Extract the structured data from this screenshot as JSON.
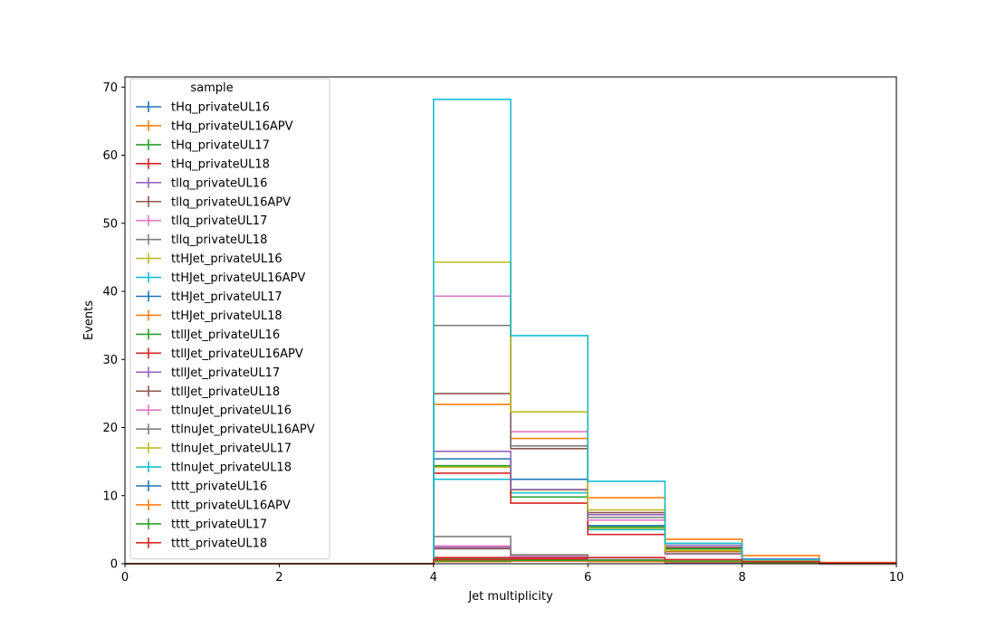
{
  "chart_data": {
    "type": "histogram-step",
    "title": "",
    "xlabel": "Jet multiplicity",
    "ylabel": "Events",
    "xlim": [
      0,
      10
    ],
    "ylim": [
      0,
      71.5
    ],
    "xticks": [
      "0",
      "2",
      "4",
      "6",
      "8",
      "10"
    ],
    "yticks": [
      "0",
      "10",
      "20",
      "30",
      "40",
      "50",
      "60",
      "70"
    ],
    "grid": false,
    "legend": {
      "title": "sample",
      "placement": "upper-left"
    },
    "bin_edges": [
      0,
      1,
      2,
      3,
      4,
      5,
      6,
      7,
      8,
      9,
      10
    ],
    "series": [
      {
        "name": "tHq_privateUL16",
        "color": "#1f77b4",
        "values": [
          0,
          0,
          0,
          0,
          0.6,
          0.4,
          0.3,
          0.1,
          0.05,
          0
        ]
      },
      {
        "name": "tHq_privateUL16APV",
        "color": "#ff7f0e",
        "values": [
          0,
          0,
          0,
          0,
          0.5,
          0.4,
          0.3,
          0.1,
          0.05,
          0
        ]
      },
      {
        "name": "tHq_privateUL17",
        "color": "#2ca02c",
        "values": [
          0,
          0,
          0,
          0,
          0.8,
          0.6,
          0.4,
          0.15,
          0.05,
          0
        ]
      },
      {
        "name": "tHq_privateUL18",
        "color": "#d62728",
        "values": [
          0,
          0,
          0,
          0,
          0.9,
          0.7,
          0.5,
          0.2,
          0.05,
          0
        ]
      },
      {
        "name": "tllq_privateUL16",
        "color": "#9467bd",
        "values": [
          0,
          0,
          0,
          0,
          2.4,
          1.0,
          0.5,
          0.15,
          0.05,
          0
        ]
      },
      {
        "name": "tllq_privateUL16APV",
        "color": "#8c564b",
        "values": [
          0,
          0,
          0,
          0,
          2.2,
          0.9,
          0.4,
          0.15,
          0.05,
          0
        ]
      },
      {
        "name": "tllq_privateUL17",
        "color": "#e377c2",
        "values": [
          0,
          0,
          0,
          0,
          2.6,
          1.1,
          0.5,
          0.2,
          0.05,
          0
        ]
      },
      {
        "name": "tllq_privateUL18",
        "color": "#7f7f7f",
        "values": [
          0,
          0,
          0,
          0,
          4.0,
          1.3,
          0.6,
          0.2,
          0.05,
          0
        ]
      },
      {
        "name": "ttHJet_privateUL16",
        "color": "#bcbd22",
        "values": [
          0,
          0,
          0,
          0,
          14.2,
          10.8,
          5.2,
          2.0,
          0.5,
          0.1
        ]
      },
      {
        "name": "ttHJet_privateUL16APV",
        "color": "#17becf",
        "values": [
          0,
          0,
          0,
          0,
          12.4,
          10.4,
          5.0,
          1.9,
          0.5,
          0.1
        ]
      },
      {
        "name": "ttHJet_privateUL17",
        "color": "#1f77b4",
        "values": [
          0,
          0,
          0,
          0,
          15.4,
          12.4,
          5.6,
          2.3,
          0.6,
          0.1
        ]
      },
      {
        "name": "ttHJet_privateUL18",
        "color": "#ff7f0e",
        "values": [
          0,
          0,
          0,
          0,
          23.4,
          18.4,
          9.7,
          3.6,
          1.2,
          0.2
        ]
      },
      {
        "name": "ttllJet_privateUL16",
        "color": "#2ca02c",
        "values": [
          0,
          0,
          0,
          0,
          14.4,
          9.8,
          5.4,
          2.2,
          0.6,
          0.1
        ]
      },
      {
        "name": "ttllJet_privateUL16APV",
        "color": "#d62728",
        "values": [
          0,
          0,
          0,
          0,
          13.3,
          8.9,
          4.3,
          1.8,
          0.5,
          0.1
        ]
      },
      {
        "name": "ttllJet_privateUL17",
        "color": "#9467bd",
        "values": [
          0,
          0,
          0,
          0,
          16.5,
          10.9,
          7.2,
          2.7,
          0.7,
          0.1
        ]
      },
      {
        "name": "ttllJet_privateUL18",
        "color": "#8c564b",
        "values": [
          0,
          0,
          0,
          0,
          25.0,
          16.9,
          7.5,
          2.4,
          0.6,
          0.1
        ]
      },
      {
        "name": "ttlnuJet_privateUL16",
        "color": "#e377c2",
        "values": [
          0,
          0,
          0,
          0,
          39.3,
          19.4,
          6.4,
          1.4,
          0.3,
          0.05
        ]
      },
      {
        "name": "ttlnuJet_privateUL16APV",
        "color": "#7f7f7f",
        "values": [
          0,
          0,
          0,
          0,
          35.0,
          17.3,
          6.8,
          1.5,
          0.3,
          0.05
        ]
      },
      {
        "name": "ttlnuJet_privateUL17",
        "color": "#bcbd22",
        "values": [
          0,
          0,
          0,
          0,
          44.3,
          22.3,
          7.9,
          1.9,
          0.4,
          0.05
        ]
      },
      {
        "name": "ttlnuJet_privateUL18",
        "color": "#17becf",
        "values": [
          0,
          0,
          0,
          0,
          68.2,
          33.5,
          12.1,
          3.0,
          0.6,
          0.1
        ]
      },
      {
        "name": "tttt_privateUL16",
        "color": "#1f77b4",
        "values": [
          0,
          0,
          0,
          0,
          0.3,
          0.4,
          0.4,
          0.3,
          0.15,
          0.05
        ]
      },
      {
        "name": "tttt_privateUL16APV",
        "color": "#ff7f0e",
        "values": [
          0,
          0,
          0,
          0,
          0.3,
          0.4,
          0.4,
          0.3,
          0.15,
          0.05
        ]
      },
      {
        "name": "tttt_privateUL17",
        "color": "#2ca02c",
        "values": [
          0,
          0,
          0,
          0,
          0.4,
          0.5,
          0.5,
          0.4,
          0.2,
          0.05
        ]
      },
      {
        "name": "tttt_privateUL18",
        "color": "#d62728",
        "values": [
          0,
          0,
          0,
          0,
          0.6,
          0.8,
          0.9,
          0.6,
          0.3,
          0.1
        ]
      }
    ]
  }
}
